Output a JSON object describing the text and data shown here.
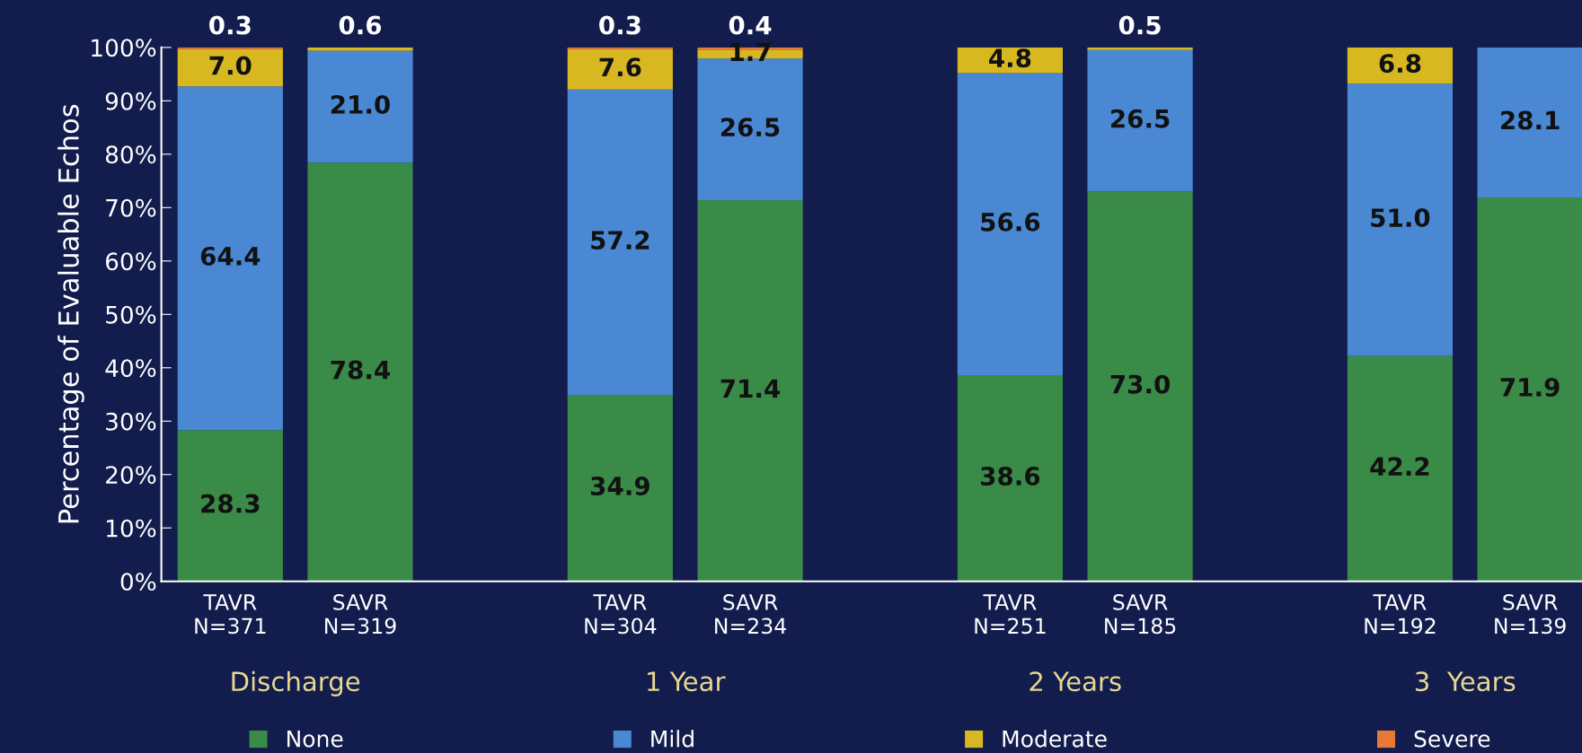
{
  "chart_data": {
    "type": "bar",
    "stacked": true,
    "ylabel": "Percentage of Evaluable Echos",
    "categories": [
      "TAVR\nN=371",
      "SAVR\nN=319",
      null,
      "TAVR\nN=304",
      "SAVR\nN=234",
      null,
      "TAVR\nN=251",
      "SAVR\nN=185",
      null,
      "TAVR\nN=192",
      "SAVR\nN=139"
    ],
    "series": [
      {
        "name": "None",
        "color": "#3a8a48",
        "values": [
          28.3,
          78.4,
          null,
          34.9,
          71.4,
          null,
          38.6,
          73.0,
          null,
          42.2,
          71.9
        ],
        "value_labels": [
          "28.3",
          "78.4",
          null,
          "34.9",
          "71.4",
          null,
          "38.6",
          "73.0",
          null,
          "42.2",
          "71.9"
        ]
      },
      {
        "name": "Mild",
        "color": "#4a88d4",
        "values": [
          64.4,
          21.0,
          null,
          57.2,
          26.5,
          null,
          56.6,
          26.5,
          null,
          51.0,
          28.1
        ],
        "value_labels": [
          "64.4",
          "21.0",
          null,
          "57.2",
          "26.5",
          null,
          "56.6",
          "26.5",
          null,
          "51.0",
          "28.1"
        ]
      },
      {
        "name": "Moderate",
        "color": "#d8b820",
        "values": [
          7.0,
          0.6,
          null,
          7.6,
          1.7,
          null,
          4.8,
          0.5,
          null,
          6.8,
          null
        ],
        "value_labels": [
          "7.0",
          "0.6",
          null,
          "7.6",
          "1.7",
          null,
          "4.8",
          "0.5",
          null,
          "6.8",
          null
        ]
      },
      {
        "name": "Severe",
        "color": "#e87838",
        "values": [
          0.3,
          null,
          null,
          0.3,
          0.4,
          null,
          null,
          null,
          null,
          null,
          null
        ],
        "value_labels": [
          "0.3",
          null,
          null,
          "0.3",
          "0.4",
          null,
          null,
          null,
          null,
          null,
          null
        ]
      }
    ],
    "ylim": [
      0,
      100
    ],
    "yticks": [
      {
        "value": 0,
        "label": "0%"
      },
      {
        "value": 10,
        "label": "10%"
      },
      {
        "value": 20,
        "label": "20%"
      },
      {
        "value": 30,
        "label": "30%"
      },
      {
        "value": 40,
        "label": "40%"
      },
      {
        "value": 50,
        "label": "50%"
      },
      {
        "value": 60,
        "label": "60%"
      },
      {
        "value": 70,
        "label": "70%"
      },
      {
        "value": 80,
        "label": "80%"
      },
      {
        "value": 90,
        "label": "90%"
      },
      {
        "value": 100,
        "label": "100%"
      }
    ],
    "annotations": [
      "Discharge",
      "1 Year",
      "2 Years",
      "3  Years"
    ],
    "grid": false,
    "legend": "bottom"
  }
}
